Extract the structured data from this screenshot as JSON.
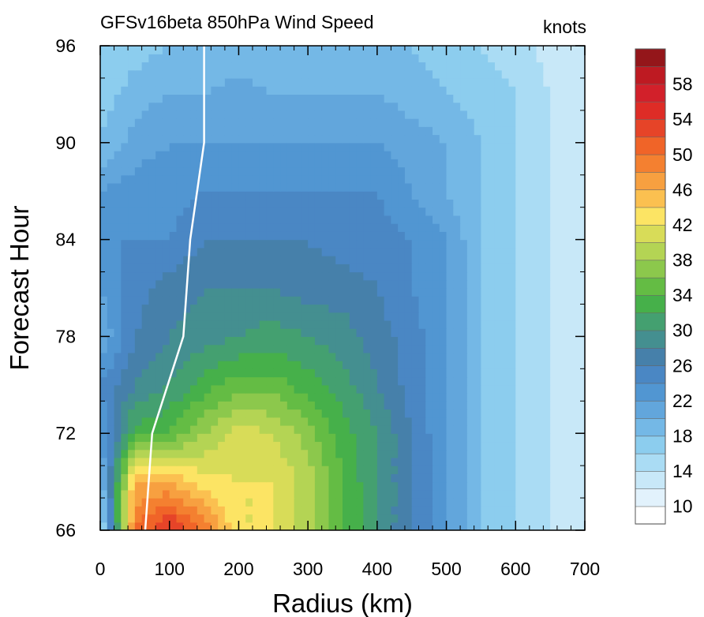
{
  "chart_data": {
    "type": "heatmap",
    "title": "GFSv16beta 850hPa Wind Speed",
    "units": "knots",
    "xlabel": "Radius (km)",
    "ylabel": "Forecast Hour",
    "xlim": [
      0,
      700
    ],
    "ylim": [
      66,
      96
    ],
    "x_ticks": [
      "0",
      "100",
      "200",
      "300",
      "400",
      "500",
      "600",
      "700"
    ],
    "y_ticks": [
      "66",
      "72",
      "78",
      "84",
      "90",
      "96"
    ],
    "colorbar_labels": [
      "10",
      "14",
      "18",
      "22",
      "26",
      "30",
      "34",
      "38",
      "42",
      "46",
      "50",
      "54",
      "58"
    ],
    "colorbar_levels": [
      8,
      10,
      12,
      14,
      16,
      18,
      20,
      22,
      24,
      26,
      28,
      30,
      32,
      34,
      36,
      38,
      40,
      42,
      44,
      46,
      48,
      50,
      52,
      54,
      56,
      58,
      60
    ],
    "colors": [
      "#ffffff",
      "#e2f2fc",
      "#c8e8f8",
      "#aadcf4",
      "#8ccdee",
      "#74b8e6",
      "#62a6dc",
      "#5196d2",
      "#4a87c4",
      "#4680aa",
      "#448f90",
      "#44a070",
      "#46b04a",
      "#64bc44",
      "#8cc84c",
      "#b4d454",
      "#d8dc58",
      "#fce464",
      "#fbc050",
      "#f7a040",
      "#f48030",
      "#f06428",
      "#e64428",
      "#de2c26",
      "#d2202a",
      "#be1a22",
      "#94161a"
    ],
    "radius_km": [
      0,
      50,
      100,
      150,
      200,
      250,
      300,
      350,
      400,
      450,
      500,
      550,
      600,
      650,
      700
    ],
    "forecast_hour": [
      66,
      69,
      72,
      75,
      78,
      81,
      84,
      87,
      90,
      93,
      96
    ],
    "wind_knots": [
      [
        14,
        50,
        55,
        50,
        42,
        42,
        39,
        34,
        30,
        26,
        22,
        18,
        16,
        14,
        12
      ],
      [
        18,
        46,
        46,
        43,
        42,
        42,
        39,
        34,
        30,
        26,
        22,
        18,
        16,
        14,
        12
      ],
      [
        22,
        33,
        34,
        38,
        41,
        40,
        37,
        33,
        30,
        26,
        22,
        18,
        16,
        14,
        12
      ],
      [
        24,
        28,
        30,
        33,
        35,
        35,
        33,
        31,
        28,
        25,
        22,
        18,
        16,
        14,
        12
      ],
      [
        20,
        26,
        28,
        29,
        30,
        31,
        30,
        29,
        27,
        25,
        22,
        18,
        16,
        14,
        12
      ],
      [
        22,
        25,
        27,
        28,
        28,
        28,
        27,
        27,
        26,
        24,
        22,
        18,
        16,
        14,
        12
      ],
      [
        24,
        24,
        24,
        26,
        26,
        26,
        26,
        25,
        25,
        24,
        22,
        18,
        16,
        14,
        12
      ],
      [
        22,
        23,
        23,
        24,
        24,
        24,
        24,
        24,
        24,
        22,
        20,
        18,
        16,
        14,
        12
      ],
      [
        18,
        21,
        22,
        22,
        22,
        22,
        22,
        22,
        22,
        21,
        20,
        18,
        16,
        14,
        12
      ],
      [
        17,
        19,
        20,
        20,
        21,
        20,
        20,
        20,
        20,
        19,
        18,
        17,
        16,
        14,
        12
      ],
      [
        16,
        17,
        18,
        18,
        18,
        18,
        18,
        18,
        18,
        18,
        17,
        16,
        15,
        13,
        12
      ]
    ],
    "rmw_line": {
      "name": "",
      "hour": [
        66,
        72,
        78,
        84,
        90,
        96
      ],
      "radius_km": [
        65,
        75,
        120,
        130,
        150,
        150
      ]
    },
    "grid": false,
    "colorbar_position": "right"
  }
}
